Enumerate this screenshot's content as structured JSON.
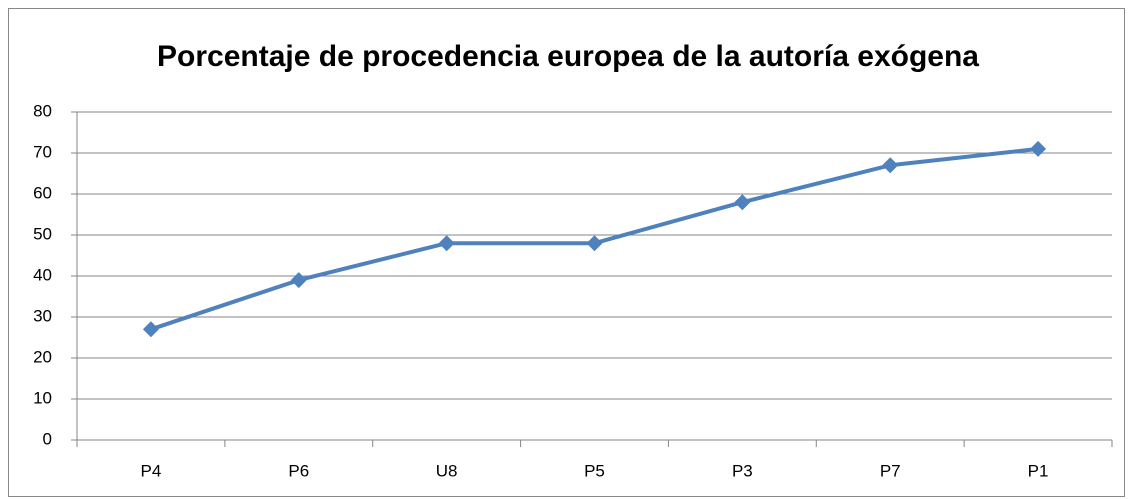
{
  "chart_data": {
    "type": "line",
    "title": "Porcentaje de procedencia europea de la autoría exógena",
    "categories": [
      "P4",
      "P6",
      "U8",
      "P5",
      "P3",
      "P7",
      "P1"
    ],
    "values": [
      27,
      39,
      48,
      48,
      58,
      67,
      71
    ],
    "color": "#4f81bd",
    "ylim": [
      0,
      80
    ],
    "yticks": [
      0,
      10,
      20,
      30,
      40,
      50,
      60,
      70,
      80
    ],
    "grid": true
  }
}
